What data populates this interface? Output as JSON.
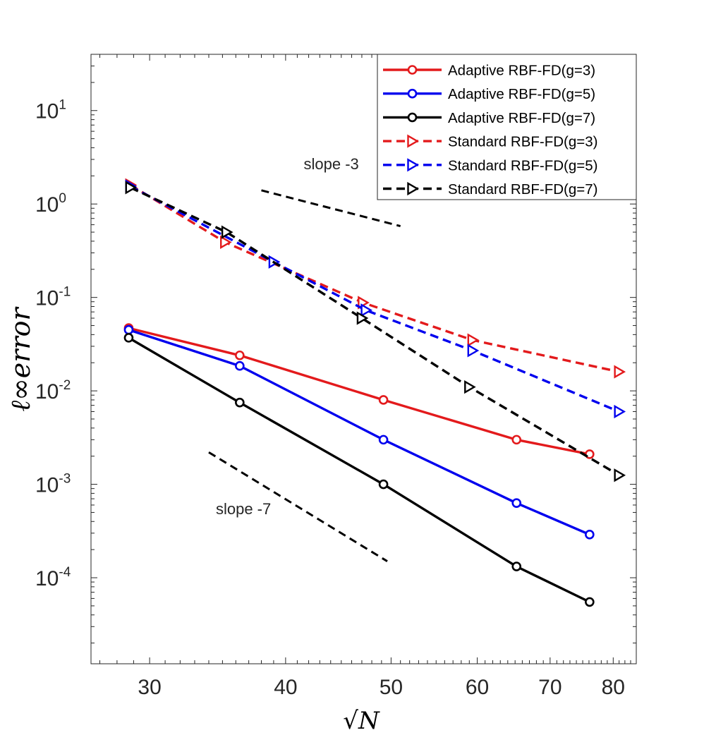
{
  "chart_data": {
    "type": "line",
    "xscale": "log",
    "yscale": "log",
    "xlim": [
      26.5,
      84
    ],
    "ylim": [
      1.2e-05,
      40
    ],
    "xticks": [
      {
        "value": 30,
        "label": "30"
      },
      {
        "value": 40,
        "label": "40"
      },
      {
        "value": 50,
        "label": "50"
      },
      {
        "value": 60,
        "label": "60"
      },
      {
        "value": 70,
        "label": "70"
      },
      {
        "value": 80,
        "label": "80"
      }
    ],
    "yticks": [
      {
        "value": 10,
        "base": "10",
        "exp": "1"
      },
      {
        "value": 1,
        "base": "10",
        "exp": "0"
      },
      {
        "value": 0.1,
        "base": "10",
        "exp": "-1"
      },
      {
        "value": 0.01,
        "base": "10",
        "exp": "-2"
      },
      {
        "value": 0.001,
        "base": "10",
        "exp": "-3"
      },
      {
        "value": 0.0001,
        "base": "10",
        "exp": "-4"
      }
    ],
    "xlabel": "√N",
    "ylabel": "ℓ∞error",
    "legend_position": "top-right",
    "series": [
      {
        "name": "Adaptive RBF-FD(g=3)",
        "color": "#e31a1c",
        "dash": "solid",
        "marker": "circle",
        "x": [
          28.7,
          36.3,
          49.2,
          65.2,
          76.1
        ],
        "y": [
          0.047,
          0.024,
          0.008,
          0.003,
          0.0021
        ]
      },
      {
        "name": "Adaptive RBF-FD(g=5)",
        "color": "#0000ee",
        "dash": "solid",
        "marker": "circle",
        "x": [
          28.7,
          36.3,
          49.2,
          65.2,
          76.1
        ],
        "y": [
          0.045,
          0.0185,
          0.003,
          0.00063,
          0.00029
        ]
      },
      {
        "name": "Adaptive RBF-FD(g=7)",
        "color": "#000000",
        "dash": "solid",
        "marker": "circle",
        "x": [
          28.7,
          36.3,
          49.2,
          65.2,
          76.1
        ],
        "y": [
          0.037,
          0.0075,
          0.001,
          0.000132,
          5.5e-05
        ]
      },
      {
        "name": "Standard RBF-FD(g=3)",
        "color": "#e31a1c",
        "dash": "dashed",
        "marker": "triangle-right",
        "x": [
          28.8,
          35.2,
          47.1,
          59.4,
          81.0
        ],
        "y": [
          1.6,
          0.39,
          0.088,
          0.035,
          0.016
        ]
      },
      {
        "name": "Standard RBF-FD(g=5)",
        "color": "#0000ee",
        "dash": "dashed",
        "marker": "triangle-right",
        "x": [
          28.8,
          39.0,
          47.4,
          59.4,
          81.0
        ],
        "y": [
          1.55,
          0.24,
          0.073,
          0.027,
          0.006
        ]
      },
      {
        "name": "Standard RBF-FD(g=7)",
        "color": "#000000",
        "dash": "dashed",
        "marker": "triangle-right",
        "x": [
          28.8,
          35.3,
          47.0,
          59.0,
          81.0
        ],
        "y": [
          1.5,
          0.5,
          0.06,
          0.011,
          0.00125
        ]
      }
    ],
    "reference_lines": [
      {
        "name": "slope -3",
        "label": "slope -3",
        "x": [
          38.0,
          51.0
        ],
        "y": [
          1.4,
          0.58
        ]
      },
      {
        "name": "slope -7",
        "label": "slope -7",
        "x": [
          34.0,
          49.6
        ],
        "y": [
          0.0022,
          0.00015
        ]
      }
    ]
  }
}
